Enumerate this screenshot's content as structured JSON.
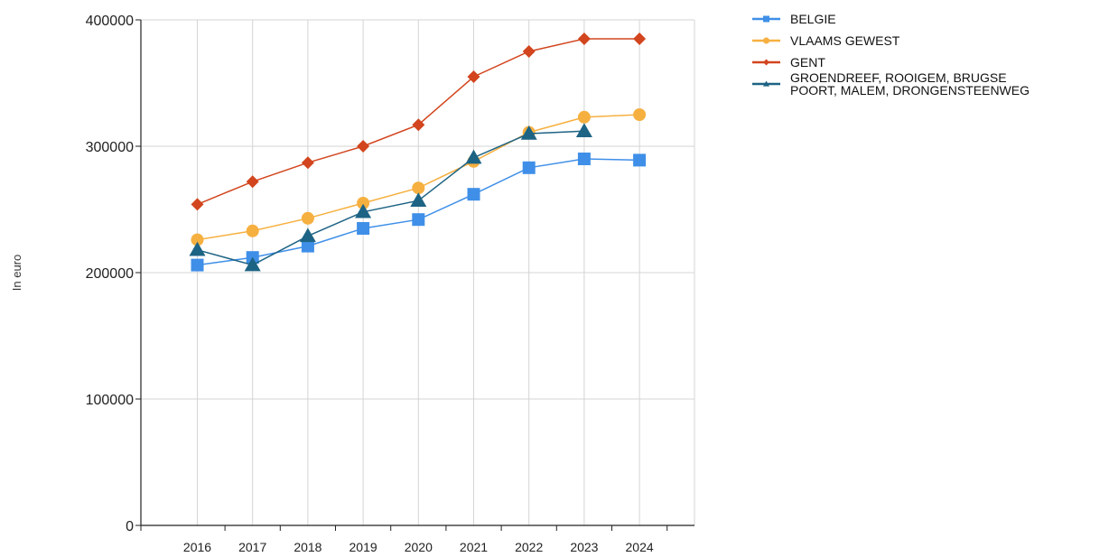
{
  "chart_data": {
    "type": "line",
    "title": "",
    "xlabel": "",
    "ylabel": "In euro",
    "ylim": [
      0,
      400000
    ],
    "yticks": [
      0,
      100000,
      200000,
      300000,
      400000
    ],
    "ytick_labels": [
      "0",
      "100000",
      "200000",
      "300000",
      "400000"
    ],
    "categories": [
      "2016",
      "2017",
      "2018",
      "2019",
      "2020",
      "2021",
      "2022",
      "2023",
      "2024"
    ],
    "grid": true,
    "legend_position": "top-right",
    "series": [
      {
        "name": "BELGIE",
        "color": "#3f8fe8",
        "marker": "square",
        "values": [
          206000,
          212000,
          221000,
          235000,
          242000,
          262000,
          283000,
          290000,
          289000
        ]
      },
      {
        "name": "VLAAMS GEWEST",
        "color": "#f6b040",
        "marker": "circle",
        "values": [
          226000,
          233000,
          243000,
          255000,
          267000,
          288000,
          311000,
          323000,
          325000
        ]
      },
      {
        "name": "GENT",
        "color": "#d2451e",
        "marker": "diamond",
        "values": [
          254000,
          272000,
          287000,
          300000,
          317000,
          355000,
          375000,
          385000,
          385000
        ]
      },
      {
        "name": "GROENDREEF, ROOIGEM, BRUGSE POORT, MALEM, DRONGENSTEENWEG",
        "legend_lines": [
          "GROENDREEF, ROOIGEM, BRUGSE",
          "POORT, MALEM, DRONGENSTEENWEG"
        ],
        "color": "#1d6384",
        "marker": "triangle",
        "values": [
          218000,
          206000,
          229000,
          248000,
          257000,
          291000,
          310000,
          312000,
          null
        ]
      }
    ]
  }
}
